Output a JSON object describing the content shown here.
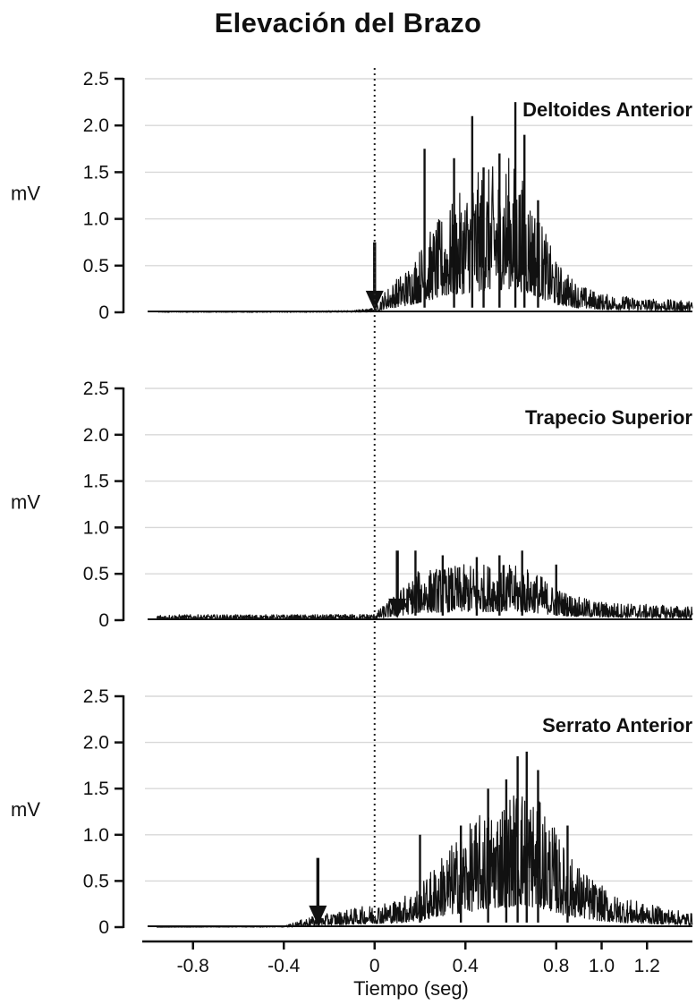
{
  "title": "Elevación del Brazo",
  "chart_data": [
    {
      "type": "line",
      "panel": "Deltoides Anterior",
      "ylabel": "mV",
      "xlabel": "",
      "ylim": [
        0,
        2.5
      ],
      "yticks": [
        "0",
        "0.5",
        "1.0",
        "1.5",
        "2.0",
        "2.5"
      ],
      "xlim": [
        -1.0,
        1.4
      ],
      "onset_marker_x": 0.0,
      "envelope": [
        [
          -1.0,
          0.01
        ],
        [
          -0.5,
          0.01
        ],
        [
          -0.1,
          0.02
        ],
        [
          0.0,
          0.05
        ],
        [
          0.05,
          0.25
        ],
        [
          0.15,
          0.5
        ],
        [
          0.25,
          0.9
        ],
        [
          0.35,
          1.2
        ],
        [
          0.45,
          1.5
        ],
        [
          0.55,
          1.6
        ],
        [
          0.6,
          1.7
        ],
        [
          0.7,
          1.2
        ],
        [
          0.8,
          0.55
        ],
        [
          0.9,
          0.3
        ],
        [
          1.0,
          0.2
        ],
        [
          1.2,
          0.15
        ],
        [
          1.4,
          0.12
        ]
      ],
      "peaks": [
        {
          "x": 0.22,
          "y": 1.75
        },
        {
          "x": 0.35,
          "y": 1.65
        },
        {
          "x": 0.43,
          "y": 2.1
        },
        {
          "x": 0.48,
          "y": 1.55
        },
        {
          "x": 0.55,
          "y": 1.7
        },
        {
          "x": 0.62,
          "y": 2.25
        },
        {
          "x": 0.66,
          "y": 1.9
        },
        {
          "x": 0.72,
          "y": 1.2
        }
      ]
    },
    {
      "type": "line",
      "panel": "Trapecio Superior",
      "ylabel": "mV",
      "xlabel": "",
      "ylim": [
        0,
        2.5
      ],
      "yticks": [
        "0",
        "0.5",
        "1.0",
        "1.5",
        "2.0",
        "2.5"
      ],
      "xlim": [
        -1.0,
        1.4
      ],
      "onset_marker_x": 0.1,
      "envelope": [
        [
          -1.0,
          0.06
        ],
        [
          -0.6,
          0.06
        ],
        [
          -0.2,
          0.06
        ],
        [
          0.0,
          0.07
        ],
        [
          0.1,
          0.3
        ],
        [
          0.2,
          0.55
        ],
        [
          0.4,
          0.6
        ],
        [
          0.55,
          0.62
        ],
        [
          0.7,
          0.55
        ],
        [
          0.8,
          0.35
        ],
        [
          0.9,
          0.25
        ],
        [
          1.0,
          0.2
        ],
        [
          1.2,
          0.17
        ],
        [
          1.4,
          0.15
        ]
      ],
      "peaks": [
        {
          "x": 0.18,
          "y": 0.75
        },
        {
          "x": 0.3,
          "y": 0.7
        },
        {
          "x": 0.45,
          "y": 0.68
        },
        {
          "x": 0.55,
          "y": 0.7
        },
        {
          "x": 0.65,
          "y": 0.75
        },
        {
          "x": 0.8,
          "y": 0.6
        }
      ]
    },
    {
      "type": "line",
      "panel": "Serrato Anterior",
      "ylabel": "mV",
      "xlabel": "Tiempo (seg)",
      "ylim": [
        0,
        2.5
      ],
      "yticks": [
        "0",
        "0.5",
        "1.0",
        "1.5",
        "2.0",
        "2.5"
      ],
      "xlim": [
        -1.0,
        1.4
      ],
      "xticks": [
        "-0.8",
        "-0.4",
        "0",
        "0.4",
        "0.8",
        "1.0",
        "1.2"
      ],
      "xtick_values": [
        -0.8,
        -0.4,
        0,
        0.4,
        0.8,
        1.0,
        1.2
      ],
      "onset_marker_x": -0.25,
      "envelope": [
        [
          -1.0,
          0.0
        ],
        [
          -0.4,
          0.01
        ],
        [
          -0.3,
          0.1
        ],
        [
          -0.1,
          0.2
        ],
        [
          0.1,
          0.3
        ],
        [
          0.2,
          0.45
        ],
        [
          0.3,
          0.8
        ],
        [
          0.45,
          1.2
        ],
        [
          0.55,
          1.4
        ],
        [
          0.65,
          1.55
        ],
        [
          0.75,
          1.3
        ],
        [
          0.85,
          0.8
        ],
        [
          0.95,
          0.55
        ],
        [
          1.05,
          0.35
        ],
        [
          1.2,
          0.25
        ],
        [
          1.4,
          0.15
        ]
      ],
      "peaks": [
        {
          "x": 0.2,
          "y": 1.0
        },
        {
          "x": 0.38,
          "y": 1.1
        },
        {
          "x": 0.5,
          "y": 1.5
        },
        {
          "x": 0.58,
          "y": 1.6
        },
        {
          "x": 0.63,
          "y": 1.85
        },
        {
          "x": 0.67,
          "y": 1.9
        },
        {
          "x": 0.72,
          "y": 1.7
        },
        {
          "x": 0.85,
          "y": 1.1
        }
      ]
    }
  ]
}
